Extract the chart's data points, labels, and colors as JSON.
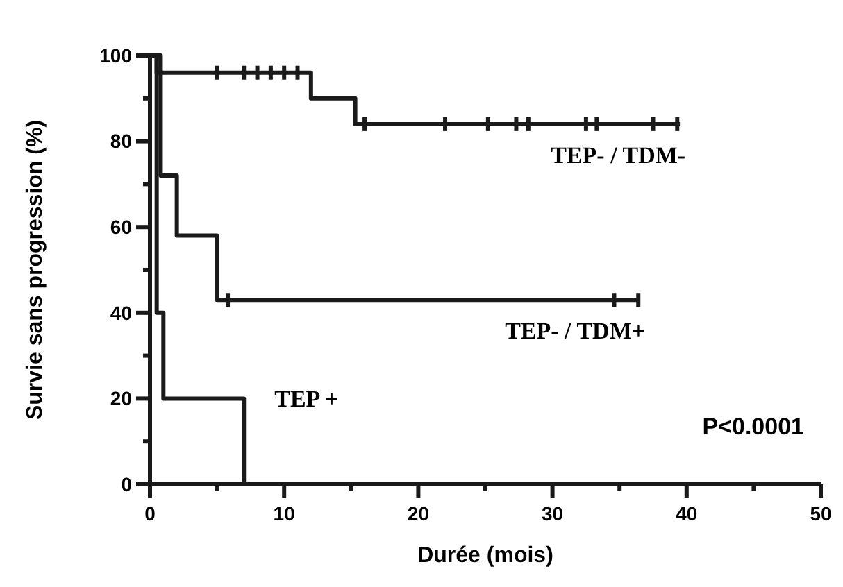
{
  "chart_data": {
    "type": "step",
    "xlabel": "Durée (mois)",
    "ylabel": "Survie sans progression (%)",
    "xlim": [
      0,
      50
    ],
    "ylim": [
      0,
      100
    ],
    "xticks": [
      0,
      {
        "value": 5,
        "label": null
      },
      10,
      {
        "value": 15,
        "label": null
      },
      20,
      {
        "value": 25,
        "label": null
      },
      30,
      {
        "value": 35,
        "label": null
      },
      40,
      {
        "value": 45,
        "label": null
      },
      50
    ],
    "yticks": [
      0,
      {
        "value": 10,
        "label": null
      },
      20,
      {
        "value": 30,
        "label": null
      },
      40,
      {
        "value": 50,
        "label": null
      },
      60,
      {
        "value": 70,
        "label": null
      },
      80,
      {
        "value": 90,
        "label": null
      },
      100
    ],
    "grid": false,
    "legend": "right",
    "line_style": "solid",
    "series": [
      {
        "name": "TEP- / TDM-",
        "color": "#1a1a1a",
        "x": [
          0,
          0.5,
          12,
          15.3,
          39.5
        ],
        "values": [
          100,
          96,
          90,
          84,
          84
        ]
      },
      {
        "name": "TEP- / TDM+",
        "color": "#1a1a1a",
        "x": [
          0,
          0.8,
          2,
          5,
          36.5
        ],
        "values": [
          100,
          72,
          58,
          43,
          43
        ]
      },
      {
        "name": "TEP +",
        "color": "#1a1a1a",
        "x": [
          0,
          0.5,
          1,
          7,
          7
        ],
        "values": [
          100,
          40,
          20,
          0,
          0
        ]
      },
      {
        "type": "scatter",
        "color": "#1a1a1a",
        "x": [
          5,
          7,
          8,
          9,
          10,
          11,
          16,
          22,
          25.2,
          27.3,
          28.2,
          32.5,
          33.3,
          37.5,
          39.3
        ],
        "values": [
          96,
          96,
          96,
          96,
          96,
          96,
          84,
          84,
          84,
          84,
          84,
          84,
          84,
          84,
          84
        ]
      },
      {
        "type": "scatter",
        "color": "#1a1a1a",
        "x": [
          5.8,
          34.6,
          36.4
        ],
        "values": [
          43,
          43,
          43
        ]
      }
    ],
    "annotations": [
      "P<0.0001"
    ]
  }
}
